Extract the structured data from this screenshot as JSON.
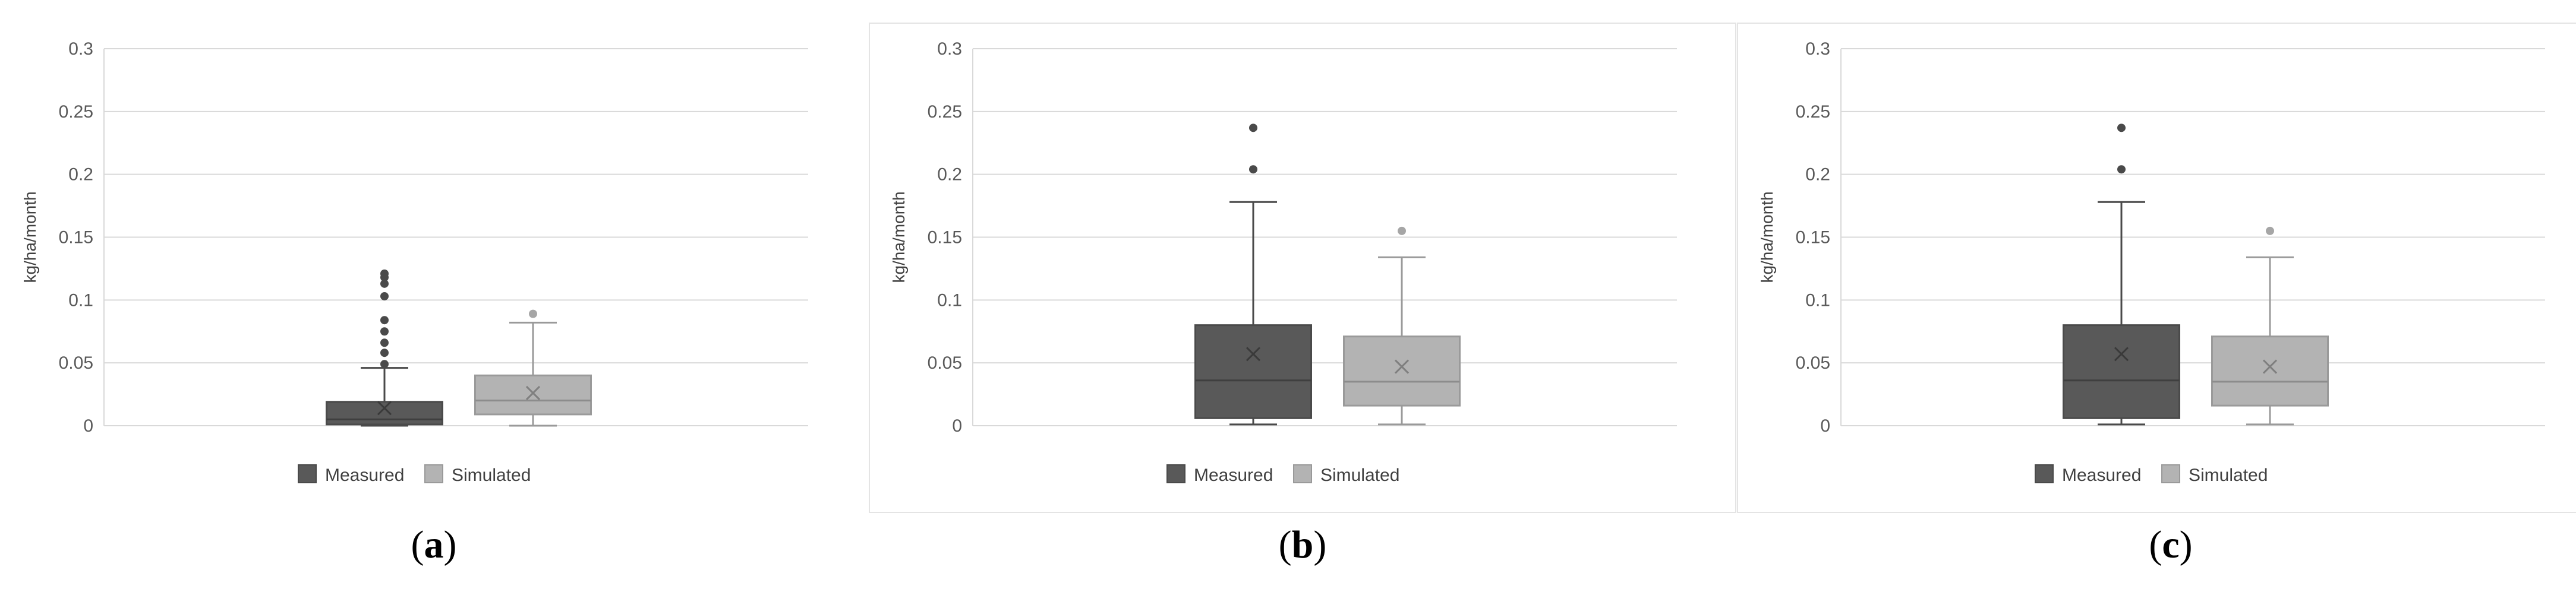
{
  "chart_data": [
    {
      "type": "box",
      "panel_label": "a",
      "ylabel": "kg/ha/month",
      "ylim": [
        0,
        0.3
      ],
      "yticks": [
        "0",
        "0.05",
        "0.1",
        "0.15",
        "0.2",
        "0.25",
        "0.3"
      ],
      "grid": true,
      "legend": "bottom-center",
      "series": [
        {
          "name": "Measured",
          "color": "#595959",
          "min": 0.0,
          "q1": 0.001,
          "median": 0.005,
          "q3": 0.019,
          "max": 0.046,
          "mean": 0.014,
          "outliers": [
            0.049,
            0.058,
            0.066,
            0.075,
            0.084,
            0.103,
            0.113,
            0.118,
            0.121
          ]
        },
        {
          "name": "Simulated",
          "color": "#b3b3b3",
          "min": 0.0,
          "q1": 0.009,
          "median": 0.02,
          "q3": 0.04,
          "max": 0.082,
          "mean": 0.026,
          "outliers": [
            0.089
          ]
        }
      ]
    },
    {
      "type": "box",
      "panel_label": "b",
      "ylabel": "kg/ha/month",
      "ylim": [
        0,
        0.3
      ],
      "yticks": [
        "0",
        "0.05",
        "0.1",
        "0.15",
        "0.2",
        "0.25",
        "0.3"
      ],
      "grid": true,
      "legend": "bottom-center",
      "series": [
        {
          "name": "Measured",
          "color": "#595959",
          "min": 0.001,
          "q1": 0.006,
          "median": 0.036,
          "q3": 0.08,
          "max": 0.178,
          "mean": 0.057,
          "outliers": [
            0.204,
            0.237
          ]
        },
        {
          "name": "Simulated",
          "color": "#b3b3b3",
          "min": 0.001,
          "q1": 0.016,
          "median": 0.035,
          "q3": 0.071,
          "max": 0.134,
          "mean": 0.047,
          "outliers": [
            0.155
          ]
        }
      ]
    },
    {
      "type": "box",
      "panel_label": "c",
      "ylabel": "kg/ha/month",
      "ylim": [
        0,
        0.3
      ],
      "yticks": [
        "0",
        "0.05",
        "0.1",
        "0.15",
        "0.2",
        "0.25",
        "0.3"
      ],
      "grid": true,
      "legend": "bottom-center",
      "series": [
        {
          "name": "Measured",
          "color": "#595959",
          "min": 0.001,
          "q1": 0.006,
          "median": 0.036,
          "q3": 0.08,
          "max": 0.178,
          "mean": 0.057,
          "outliers": [
            0.204,
            0.237
          ]
        },
        {
          "name": "Simulated",
          "color": "#b3b3b3",
          "min": 0.001,
          "q1": 0.016,
          "median": 0.035,
          "q3": 0.071,
          "max": 0.134,
          "mean": 0.047,
          "outliers": [
            0.155
          ]
        }
      ]
    }
  ],
  "captions": [
    {
      "open": "(",
      "label": "a",
      "close": ")"
    },
    {
      "open": "(",
      "label": "b",
      "close": ")"
    },
    {
      "open": "(",
      "label": "c",
      "close": ")"
    }
  ]
}
